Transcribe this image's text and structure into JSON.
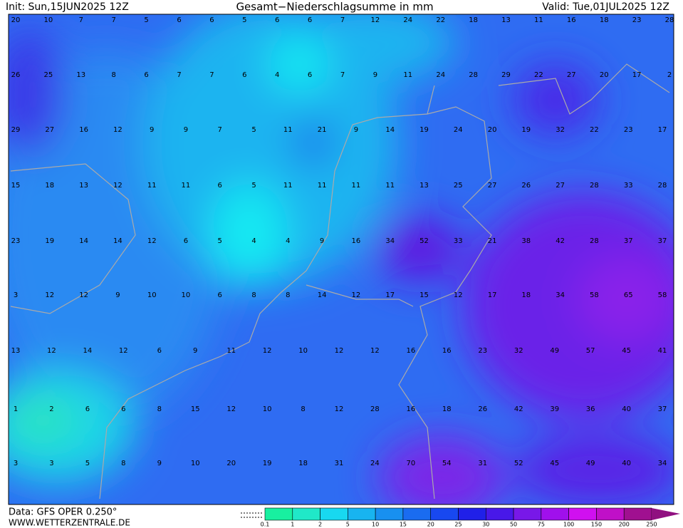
{
  "header": {
    "init": "Init: Sun,15JUN2025 12Z",
    "title": "Gesamt−Niederschlagsumme in mm",
    "valid": "Valid: Tue,01JUL2025 12Z"
  },
  "map": {
    "rows": [
      [
        20,
        10,
        7,
        7,
        5,
        6,
        6,
        5,
        6,
        6,
        7,
        12,
        24,
        22,
        18,
        13,
        11,
        16,
        18,
        23,
        28
      ],
      [
        26,
        25,
        13,
        8,
        6,
        7,
        7,
        6,
        4,
        6,
        7,
        9,
        11,
        24,
        28,
        29,
        22,
        27,
        20,
        17,
        2
      ],
      [
        29,
        27,
        16,
        12,
        9,
        9,
        7,
        5,
        11,
        21,
        9,
        14,
        19,
        24,
        20,
        19,
        32,
        22,
        23,
        17
      ],
      [
        15,
        18,
        13,
        12,
        11,
        11,
        6,
        5,
        11,
        11,
        11,
        11,
        13,
        25,
        27,
        26,
        27,
        28,
        33,
        28
      ],
      [
        23,
        19,
        14,
        14,
        12,
        6,
        5,
        4,
        4,
        9,
        16,
        34,
        52,
        33,
        21,
        38,
        42,
        28,
        37,
        37
      ],
      [
        3,
        12,
        12,
        9,
        10,
        10,
        6,
        8,
        8,
        14,
        12,
        17,
        15,
        12,
        17,
        18,
        34,
        58,
        65,
        58
      ],
      [
        13,
        12,
        14,
        12,
        6,
        9,
        11,
        12,
        10,
        12,
        12,
        16,
        16,
        23,
        32,
        49,
        57,
        45,
        41
      ],
      [
        1,
        2,
        6,
        6,
        8,
        15,
        12,
        10,
        8,
        12,
        28,
        16,
        18,
        26,
        42,
        39,
        36,
        40,
        37
      ],
      [
        3,
        3,
        5,
        8,
        9,
        10,
        20,
        19,
        18,
        31,
        24,
        70,
        54,
        31,
        52,
        45,
        49,
        40,
        34
      ]
    ]
  },
  "footer": {
    "data": "Data: GFS OPER 0.250°",
    "site": "WWW.WETTERZENTRALE.DE"
  },
  "legend": {
    "labels": [
      "0.1",
      "1",
      "2",
      "5",
      "10",
      "15",
      "20",
      "25",
      "30",
      "50",
      "75",
      "100",
      "150",
      "200",
      "250"
    ]
  }
}
